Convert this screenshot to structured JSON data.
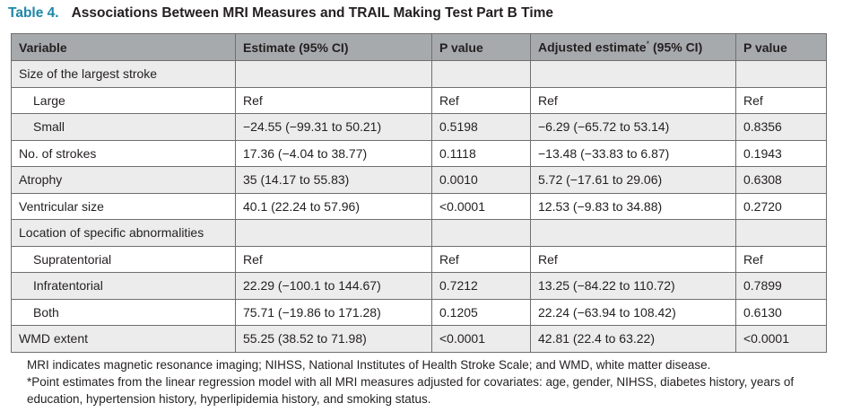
{
  "table": {
    "label": "Table 4.",
    "title": "Associations Between MRI Measures and TRAIL Making Test Part B Time",
    "headers": {
      "variable": "Variable",
      "estimate": "Estimate (95% CI)",
      "p_value": "P value",
      "adjusted_estimate": "Adjusted estimate",
      "adjusted_mark": "*",
      "adjusted_ci": " (95% CI)",
      "adjusted_p_value": "P value"
    },
    "rows": [
      {
        "type": "section",
        "variable": "Size of the largest stroke",
        "estimate": "",
        "p": "",
        "adj": "",
        "adj_p": ""
      },
      {
        "type": "sub",
        "variable": "Large",
        "estimate": "Ref",
        "p": "Ref",
        "adj": "Ref",
        "adj_p": "Ref"
      },
      {
        "type": "sub",
        "variable": "Small",
        "estimate": "−24.55 (−99.31 to 50.21)",
        "p": "0.5198",
        "adj": "−6.29 (−65.72 to 53.14)",
        "adj_p": "0.8356"
      },
      {
        "type": "main",
        "variable": "No. of strokes",
        "estimate": "17.36 (−4.04 to 38.77)",
        "p": "0.1118",
        "adj": "−13.48 (−33.83 to 6.87)",
        "adj_p": "0.1943"
      },
      {
        "type": "main",
        "variable": "Atrophy",
        "estimate": "35 (14.17 to 55.83)",
        "p": "0.0010",
        "adj": "5.72 (−17.61 to 29.06)",
        "adj_p": "0.6308"
      },
      {
        "type": "main",
        "variable": "Ventricular size",
        "estimate": "40.1 (22.24 to 57.96)",
        "p": "<0.0001",
        "adj": "12.53 (−9.83 to 34.88)",
        "adj_p": "0.2720"
      },
      {
        "type": "section",
        "variable": "Location of specific abnormalities",
        "estimate": "",
        "p": "",
        "adj": "",
        "adj_p": ""
      },
      {
        "type": "sub",
        "variable": "Supratentorial",
        "estimate": "Ref",
        "p": "Ref",
        "adj": "Ref",
        "adj_p": "Ref"
      },
      {
        "type": "sub",
        "variable": "Infratentorial",
        "estimate": "22.29 (−100.1 to 144.67)",
        "p": "0.7212",
        "adj": "13.25 (−84.22 to 110.72)",
        "adj_p": "0.7899"
      },
      {
        "type": "sub",
        "variable": "Both",
        "estimate": "75.71 (−19.86 to 171.28)",
        "p": "0.1205",
        "adj": "22.24 (−63.94 to 108.42)",
        "adj_p": "0.6130"
      },
      {
        "type": "main",
        "variable": "WMD extent",
        "estimate": "55.25 (38.52 to 71.98)",
        "p": "<0.0001",
        "adj": "42.81 (22.4 to 63.22)",
        "adj_p": "<0.0001"
      }
    ]
  },
  "footnotes": {
    "abbreviations": "MRI indicates magnetic resonance imaging; NIHSS, National Institutes of Health Stroke Scale; and WMD, white matter disease.",
    "asterisk_mark": "*",
    "asterisk_note": "Point estimates from the linear regression model with all MRI measures adjusted for covariates: age, gender, NIHSS, diabetes history, years of education, hypertension history, hyperlipidemia history, and smoking status."
  },
  "colors": {
    "label_accent": "#1c87a5",
    "header_bg": "#a7aaad",
    "shaded_row_bg": "#ececec",
    "text": "#231f20"
  }
}
